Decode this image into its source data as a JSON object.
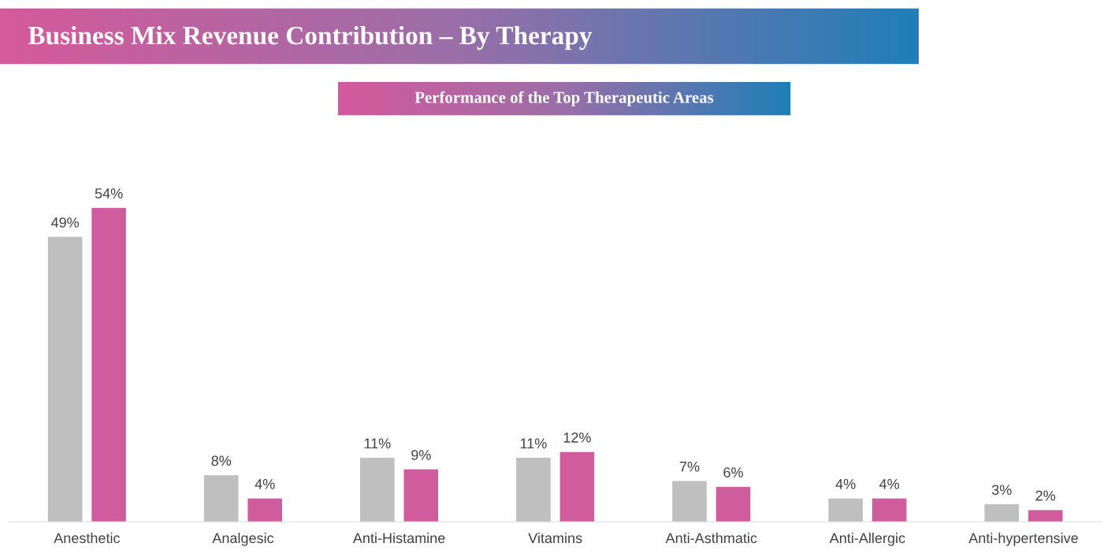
{
  "chart_data": {
    "type": "bar",
    "title": "Business Mix Revenue Contribution – By Therapy",
    "subtitle": "Performance of the Top Therapeutic Areas",
    "categories": [
      "Anesthetic",
      "Analgesic",
      "Anti-Histamine",
      "Vitamins",
      "Anti-Asthmatic",
      "Anti-Allergic",
      "Anti-hypertensive"
    ],
    "series": [
      {
        "color": "#bfbfbf",
        "values": [
          49,
          8,
          11,
          11,
          7,
          4,
          3
        ],
        "value_labels": [
          "49%",
          "8%",
          "11%",
          "11%",
          "7%",
          "4%",
          "3%"
        ]
      },
      {
        "color": "#d05c9e",
        "values": [
          54,
          4,
          9,
          12,
          6,
          4,
          2
        ],
        "value_labels": [
          "54%",
          "4%",
          "9%",
          "12%",
          "6%",
          "4%",
          "2%"
        ]
      }
    ],
    "grid": false,
    "legend": false
  }
}
